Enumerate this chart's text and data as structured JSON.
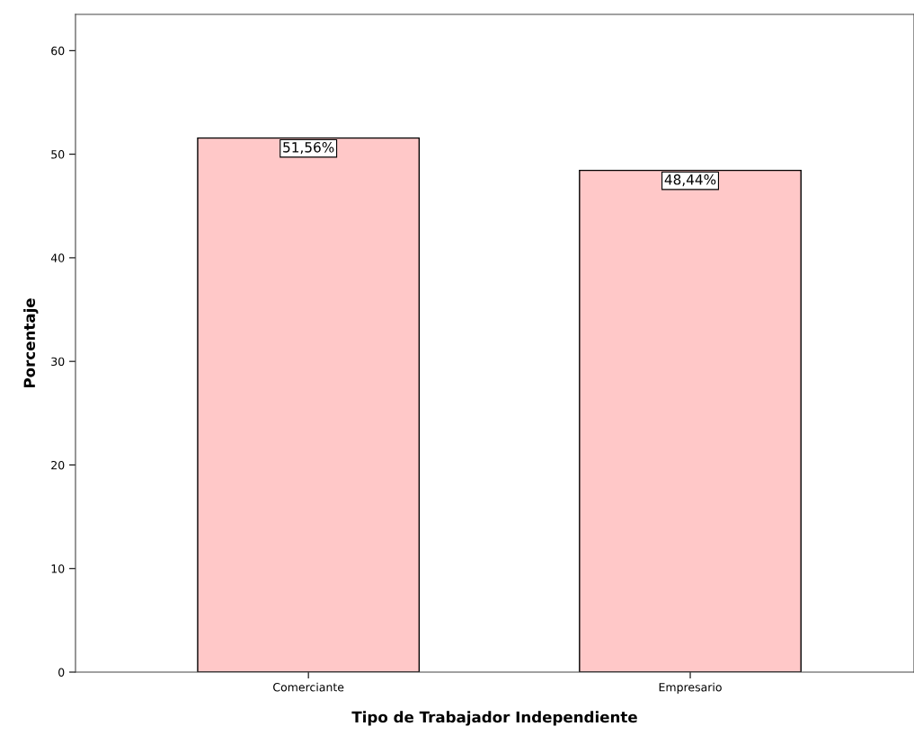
{
  "chart_data": {
    "type": "bar",
    "xlabel": "Tipo de Trabajador Independiente",
    "ylabel": "Porcentaje",
    "categories": [
      "Comerciante",
      "Empresario"
    ],
    "values": [
      51.56,
      48.44
    ],
    "color": "#ffc8c8",
    "value_labels": [
      "51,56%",
      "48,44%"
    ],
    "ylim": [
      0,
      63.5
    ],
    "yticks": [
      0,
      10,
      20,
      30,
      40,
      50,
      60
    ],
    "grid": false,
    "legend": false
  }
}
